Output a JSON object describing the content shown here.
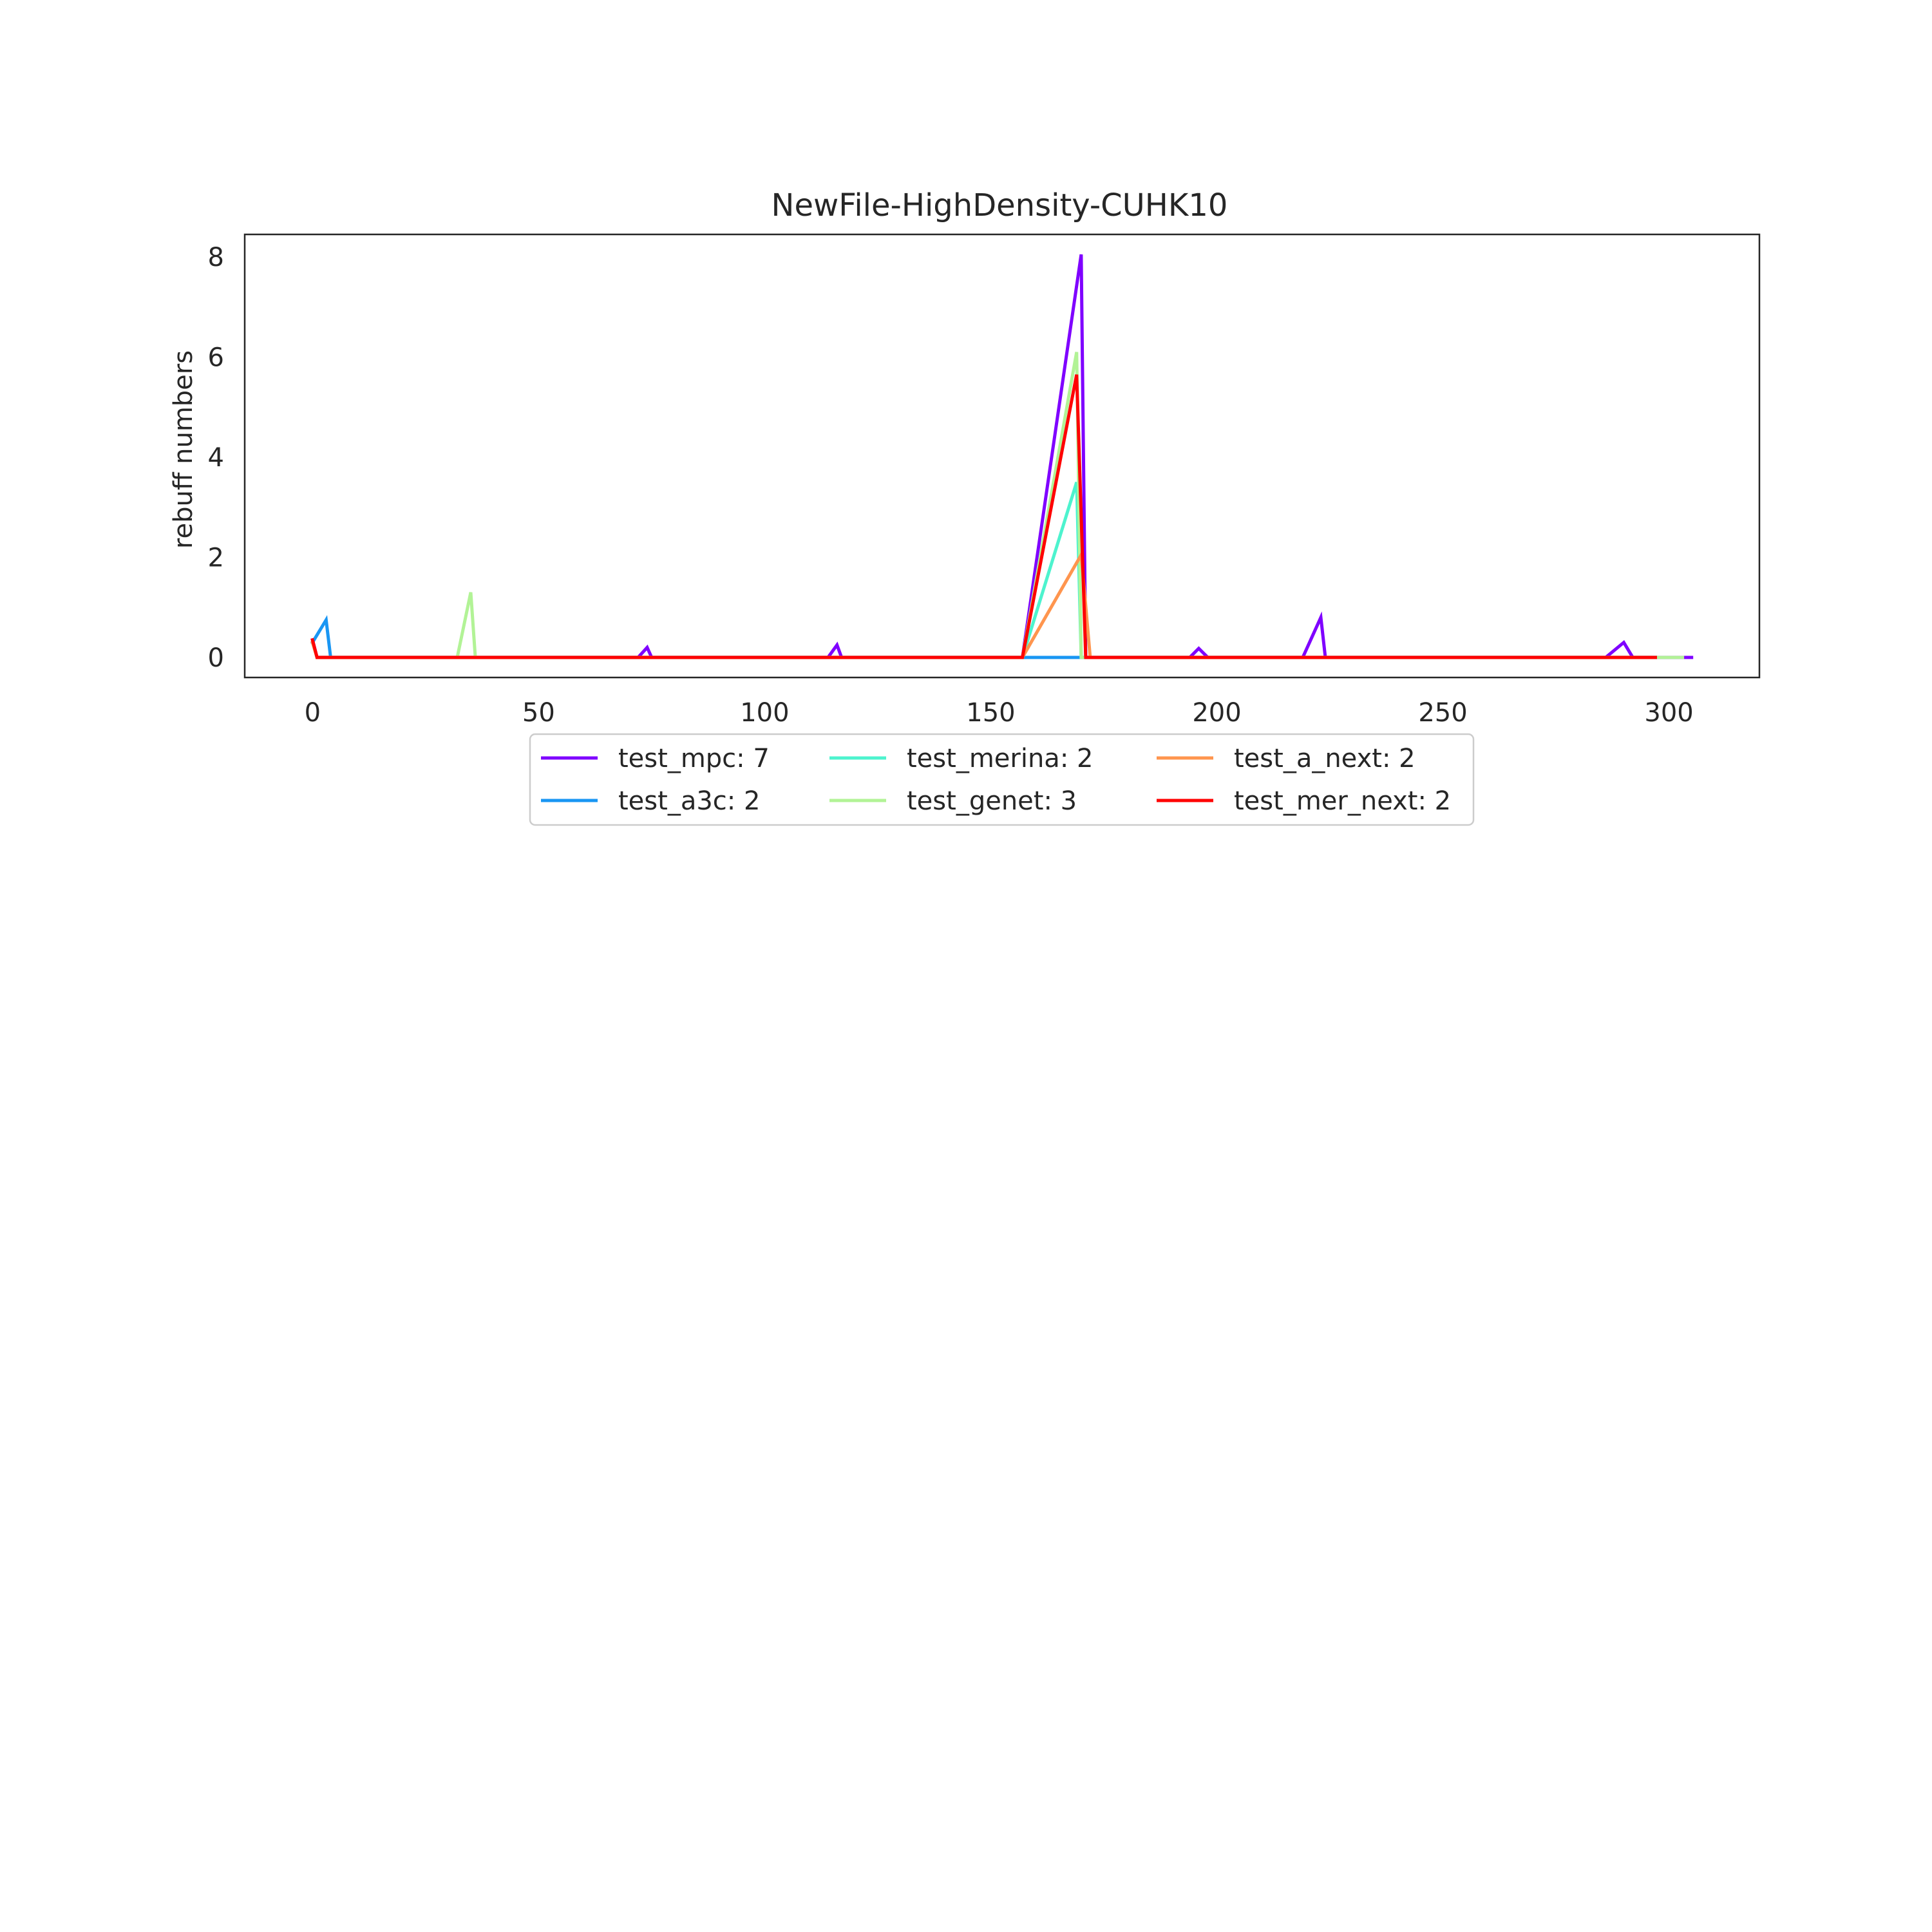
{
  "chart_data": {
    "type": "line",
    "title": "NewFile-HighDensity-CUHK10",
    "xlabel": "",
    "ylabel": "rebuff numbers",
    "xlim": [
      -15,
      320
    ],
    "ylim": [
      -0.4,
      8.45
    ],
    "xticks": [
      0,
      50,
      100,
      150,
      200,
      250,
      300
    ],
    "yticks": [
      0,
      2,
      4,
      6,
      8
    ],
    "grid": false,
    "legend_position": "below the plot, 3 columns",
    "series": [
      {
        "name": "test_mpc: 7",
        "color": "#7f00ff",
        "points": [
          [
            0,
            0.35
          ],
          [
            1,
            0
          ],
          [
            72,
            0
          ],
          [
            74,
            0.2
          ],
          [
            75,
            0
          ],
          [
            114,
            0
          ],
          [
            116,
            0.25
          ],
          [
            117,
            0
          ],
          [
            157,
            0
          ],
          [
            170,
            8.05
          ],
          [
            171,
            0
          ],
          [
            194,
            0
          ],
          [
            196,
            0.18
          ],
          [
            198,
            0
          ],
          [
            219,
            0
          ],
          [
            223,
            0.8
          ],
          [
            224,
            0
          ],
          [
            286,
            0
          ],
          [
            290,
            0.3
          ],
          [
            292,
            0
          ],
          [
            305,
            0
          ]
        ]
      },
      {
        "name": "test_a3c: 2",
        "color": "#1996f3",
        "points": [
          [
            0,
            0.3
          ],
          [
            3,
            0.75
          ],
          [
            4,
            0
          ],
          [
            297,
            0
          ]
        ]
      },
      {
        "name": "test_merina: 2",
        "color": "#4df3ce",
        "points": [
          [
            0,
            0.3
          ],
          [
            1,
            0
          ],
          [
            157,
            0
          ],
          [
            169,
            3.5
          ],
          [
            170,
            0
          ],
          [
            297,
            0
          ]
        ]
      },
      {
        "name": "test_genet: 3",
        "color": "#b2f396",
        "points": [
          [
            0,
            0.3
          ],
          [
            1,
            0
          ],
          [
            32,
            0
          ],
          [
            35,
            1.3
          ],
          [
            36,
            0
          ],
          [
            157,
            0
          ],
          [
            169,
            6.1
          ],
          [
            170,
            0
          ],
          [
            303,
            0
          ]
        ]
      },
      {
        "name": "test_a_next: 2",
        "color": "#ff954e",
        "points": [
          [
            0,
            0.3
          ],
          [
            1,
            0
          ],
          [
            157,
            0
          ],
          [
            170,
            2.05
          ],
          [
            172,
            0
          ],
          [
            297,
            0
          ]
        ]
      },
      {
        "name": "test_mer_next: 2",
        "color": "#ff0000",
        "points": [
          [
            0,
            0.35
          ],
          [
            1,
            0
          ],
          [
            157,
            0
          ],
          [
            169,
            5.65
          ],
          [
            171,
            0
          ],
          [
            297,
            0
          ]
        ]
      }
    ]
  }
}
